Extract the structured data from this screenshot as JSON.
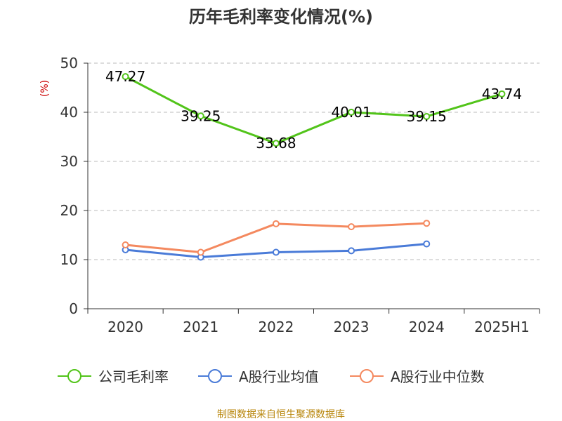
{
  "chart_data": {
    "type": "line",
    "title": "历年毛利率变化情况(%)",
    "ylabel": "(%)",
    "categories": [
      "2020",
      "2021",
      "2022",
      "2023",
      "2024",
      "2025H1"
    ],
    "ylim": [
      0,
      50
    ],
    "yticks": [
      "0",
      "10",
      "20",
      "30",
      "40",
      "50"
    ],
    "grid": "horizontal-dashed",
    "legend": "bottom",
    "series": [
      {
        "name": "公司毛利率",
        "color": "#52c41a",
        "values": [
          47.27,
          39.25,
          33.68,
          40.01,
          39.15,
          43.74
        ],
        "labels": [
          "47.27",
          "39.25",
          "33.68",
          "40.01",
          "39.15",
          "43.74"
        ]
      },
      {
        "name": "A股行业均值",
        "color": "#4a7bd8",
        "values": [
          12.0,
          10.5,
          11.5,
          11.8,
          13.2,
          null
        ]
      },
      {
        "name": "A股行业中位数",
        "color": "#f4895f",
        "values": [
          13.0,
          11.5,
          17.3,
          16.7,
          17.4,
          null
        ]
      }
    ],
    "source": "制图数据来自恒生聚源数据库"
  }
}
